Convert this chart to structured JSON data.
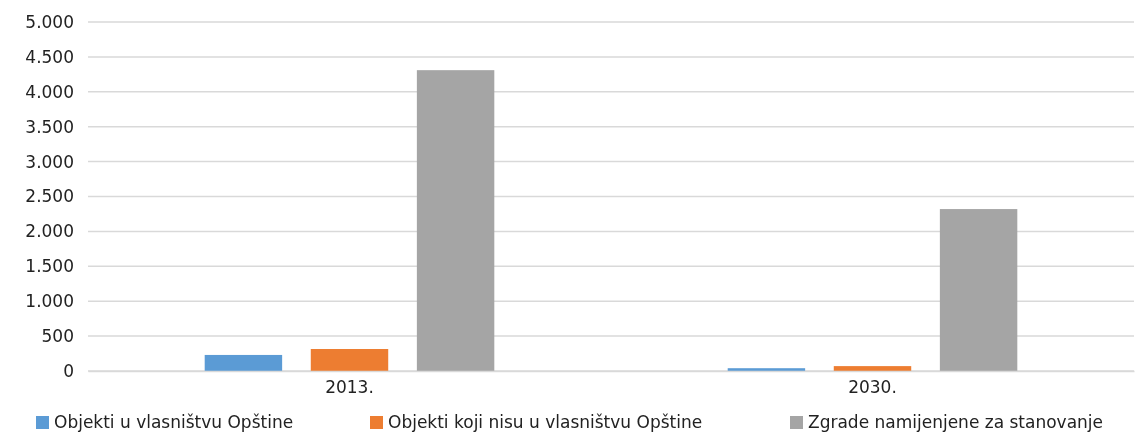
{
  "chart_data": {
    "type": "bar",
    "categories": [
      "2013.",
      "2030."
    ],
    "series": [
      {
        "name": "Objekti u vlasništvu Opštine",
        "color": "#5b9bd5",
        "values": [
          230,
          40
        ]
      },
      {
        "name": "Objekti koji nisu u vlasništvu Opštine",
        "color": "#ed7d31",
        "values": [
          315,
          70
        ]
      },
      {
        "name": "Zgrade namijenjene za stanovanje",
        "color": "#a5a5a5",
        "values": [
          4310,
          2320
        ]
      }
    ],
    "ylim": [
      0,
      5000
    ],
    "yticks": [
      0,
      {
        "value": 500,
        "label": "500"
      },
      {
        "value": 1000,
        "label": "1.000"
      },
      {
        "value": 1500,
        "label": "1.500"
      },
      {
        "value": 2000,
        "label": "2.000"
      },
      {
        "value": 2500,
        "label": "2.500"
      },
      {
        "value": 3000,
        "label": "3.000"
      },
      {
        "value": 3500,
        "label": "3.500"
      },
      {
        "value": 4000,
        "label": "4.000"
      },
      {
        "value": 4500,
        "label": "4.500"
      },
      {
        "value": 5000,
        "label": "5.000"
      }
    ],
    "grid": "y",
    "legend": "bottom"
  }
}
